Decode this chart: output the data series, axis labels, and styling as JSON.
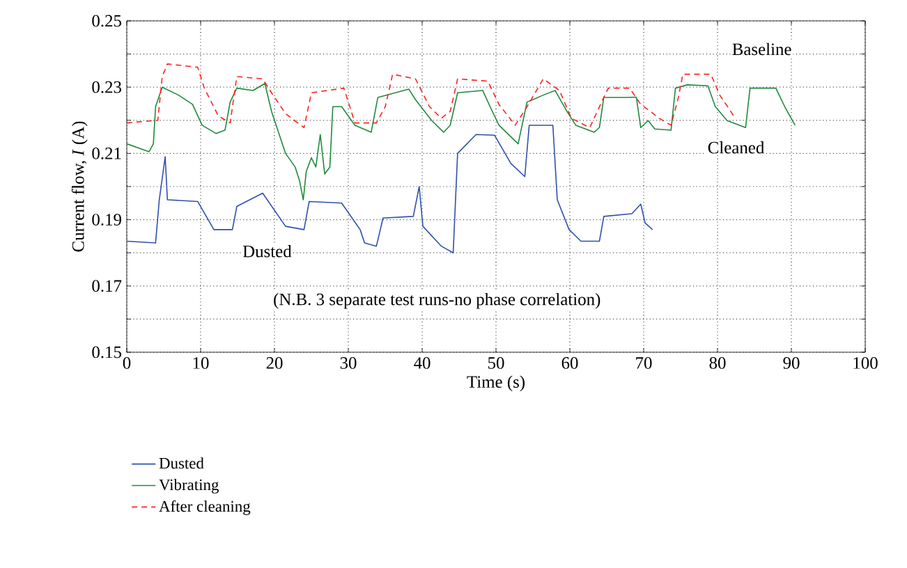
{
  "chart_data": {
    "type": "line",
    "xlabel": "Time (s)",
    "ylabel": "Current flow, *I* (A)",
    "xlim": [
      0,
      100
    ],
    "ylim": [
      0.15,
      0.25
    ],
    "xticks": [
      0,
      10,
      20,
      30,
      40,
      50,
      60,
      70,
      80,
      90,
      100
    ],
    "yticks": [
      0.15,
      {
        "value": 0.16,
        "label": null
      },
      0.17,
      {
        "value": 0.18,
        "label": null
      },
      0.19,
      {
        "value": 0.2,
        "label": null
      },
      0.21,
      {
        "value": 0.22,
        "label": null
      },
      0.23,
      {
        "value": 0.24,
        "label": null
      },
      0.25
    ],
    "grid": true,
    "legend": "bottom",
    "marker": "none",
    "annotations": [
      "Baseline",
      "Cleaned",
      "Dusted",
      "(N.B. 3 separate test runs-no phase correlation)"
    ],
    "series": [
      {
        "name": "Dusted",
        "color": "#2f4fb0",
        "line_style": "solid",
        "x": [
          0,
          3.9,
          4.4,
          5.2,
          5.5,
          9.6,
          11.8,
          14.3,
          14.9,
          18.4,
          21.5,
          24.0,
          24.7,
          29.1,
          31.6,
          32.2,
          33.8,
          34.7,
          38.8,
          39.6,
          40.1,
          42.6,
          44.2,
          44.8,
          47.3,
          49.8,
          52.0,
          53.9,
          54.5,
          57.7,
          58.3,
          59.9,
          61.5,
          64.0,
          64.6,
          68.4,
          69.6,
          70.2,
          71.2
        ],
        "values": [
          0.1835,
          0.183,
          0.196,
          0.209,
          0.196,
          0.1955,
          0.187,
          0.187,
          0.194,
          0.198,
          0.188,
          0.187,
          0.1955,
          0.195,
          0.187,
          0.183,
          0.182,
          0.1905,
          0.191,
          0.2,
          0.188,
          0.182,
          0.18,
          0.21,
          0.2157,
          0.2155,
          0.207,
          0.203,
          0.2185,
          0.2185,
          0.196,
          0.187,
          0.1835,
          0.1835,
          0.191,
          0.1918,
          0.1947,
          0.189,
          0.187
        ]
      },
      {
        "name": "Vibrating",
        "color": "#1e8a3c",
        "line_style": "solid",
        "x": [
          0,
          3.0,
          3.6,
          3.9,
          4.8,
          7.0,
          8.9,
          10.2,
          12.1,
          13.3,
          14.0,
          14.9,
          17.1,
          18.7,
          19.6,
          21.5,
          22.8,
          23.4,
          23.9,
          24.3,
          25.0,
          25.6,
          26.2,
          26.8,
          27.5,
          27.9,
          29.1,
          30.9,
          33.1,
          34.0,
          38.2,
          39.1,
          41.3,
          42.9,
          43.8,
          44.8,
          48.2,
          49.2,
          50.4,
          53.0,
          54.2,
          56.4,
          58.0,
          59.6,
          60.8,
          63.3,
          64.0,
          64.6,
          67.7,
          69.0,
          69.6,
          70.6,
          71.5,
          73.7,
          74.3,
          75.9,
          78.7,
          79.7,
          81.3,
          83.8,
          84.4,
          87.9,
          89.1,
          90.5
        ],
        "values": [
          0.2129,
          0.2105,
          0.2129,
          0.2241,
          0.23,
          0.2276,
          0.2248,
          0.2185,
          0.216,
          0.217,
          0.2255,
          0.2297,
          0.229,
          0.2311,
          0.2227,
          0.21,
          0.2059,
          0.2017,
          0.196,
          0.2045,
          0.2087,
          0.2059,
          0.2157,
          0.2038,
          0.2059,
          0.2241,
          0.2241,
          0.2185,
          0.2164,
          0.2269,
          0.2294,
          0.2262,
          0.2199,
          0.2164,
          0.2185,
          0.2283,
          0.229,
          0.2241,
          0.2185,
          0.2129,
          0.2255,
          0.2276,
          0.229,
          0.2227,
          0.2185,
          0.2164,
          0.2178,
          0.2269,
          0.2269,
          0.227,
          0.2178,
          0.2199,
          0.2174,
          0.217,
          0.2297,
          0.2307,
          0.2304,
          0.2241,
          0.2199,
          0.2178,
          0.2297,
          0.2297,
          0.2241,
          0.2185
        ]
      },
      {
        "name": "After cleaning",
        "color": "#ff2020",
        "line_style": "dashed",
        "x": [
          0,
          4.2,
          4.8,
          5.5,
          9.6,
          10.5,
          12.4,
          14.0,
          14.9,
          18.4,
          19.6,
          21.5,
          24.0,
          25.0,
          29.4,
          30.9,
          33.8,
          35.0,
          36.0,
          39.1,
          41.0,
          42.6,
          43.8,
          44.8,
          48.9,
          50.4,
          52.6,
          54.2,
          56.4,
          58.6,
          60.2,
          62.7,
          64.6,
          65.2,
          68.1,
          69.6,
          70.9,
          72.1,
          73.7,
          74.7,
          75.3,
          79.1,
          80.3,
          82.2
        ],
        "values": [
          0.2192,
          0.22,
          0.2332,
          0.237,
          0.236,
          0.2297,
          0.2213,
          0.2192,
          0.2332,
          0.2325,
          0.2283,
          0.222,
          0.2178,
          0.2283,
          0.2297,
          0.2192,
          0.2192,
          0.2241,
          0.2339,
          0.2325,
          0.2241,
          0.2206,
          0.2227,
          0.2325,
          0.2318,
          0.2248,
          0.2185,
          0.2241,
          0.2325,
          0.229,
          0.2206,
          0.2178,
          0.2269,
          0.2297,
          0.2297,
          0.2248,
          0.2227,
          0.2206,
          0.2185,
          0.2269,
          0.2339,
          0.2339,
          0.2276,
          0.2213
        ]
      }
    ]
  }
}
